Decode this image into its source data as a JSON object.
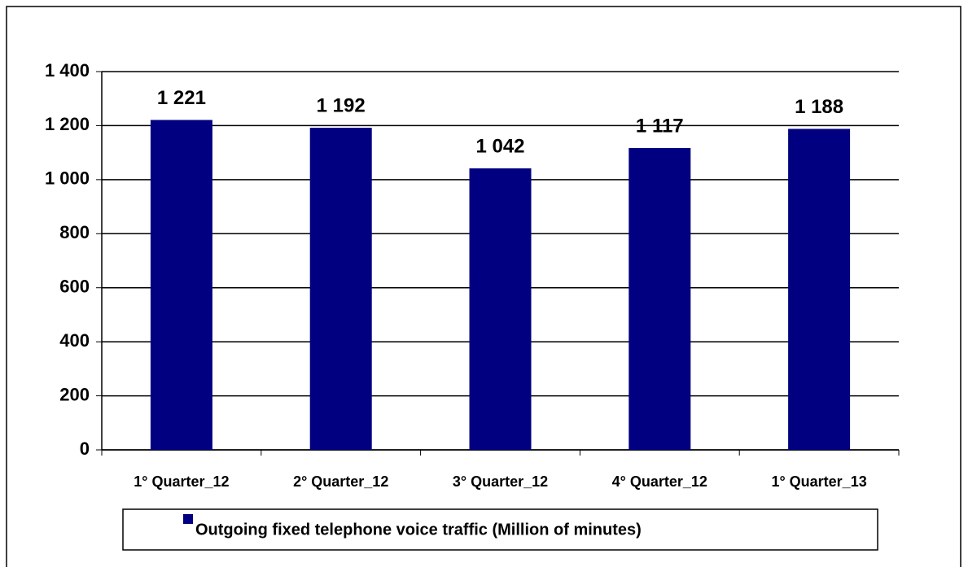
{
  "chart_data": {
    "type": "bar",
    "categories": [
      "1° Quarter_12",
      "2° Quarter_12",
      "3° Quarter_12",
      "4° Quarter_12",
      "1° Quarter_13"
    ],
    "series": [
      {
        "name": "Outgoing fixed telephone voice traffic (Million of minutes)",
        "color": "#000080",
        "values": [
          1221,
          1192,
          1042,
          1117,
          1188
        ],
        "value_labels": [
          "1 221",
          "1 192",
          "1 042",
          "1 117",
          "1 188"
        ]
      }
    ],
    "ylim": [
      0,
      1400
    ],
    "yticks": [
      0,
      200,
      400,
      600,
      800,
      {
        "value": 1000,
        "label": "1 000"
      },
      {
        "value": 1200,
        "label": "1 200"
      },
      {
        "value": 1400,
        "label": "1 400"
      }
    ],
    "grid": true,
    "legend": "bottom"
  }
}
